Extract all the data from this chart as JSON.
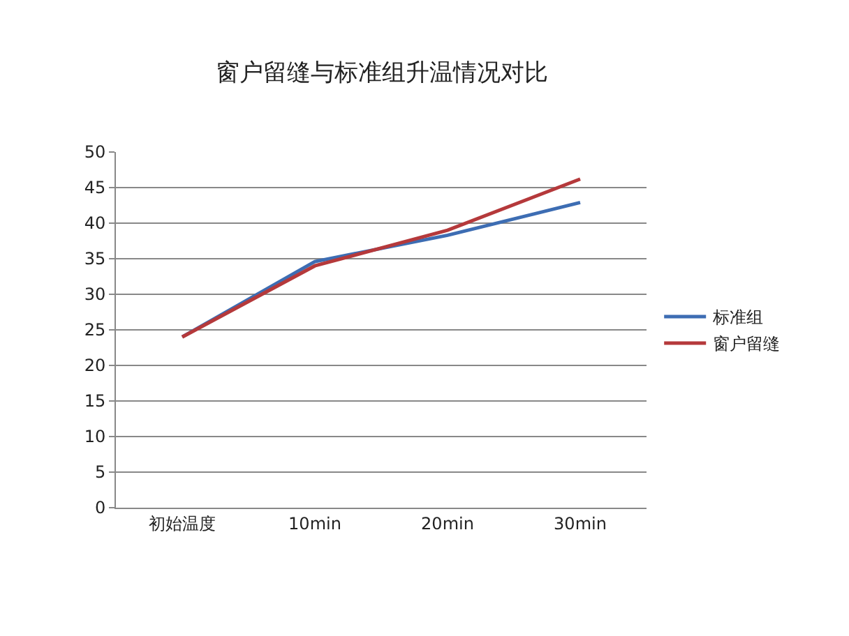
{
  "chart_data": {
    "type": "line",
    "title": "窗户留缝与标准组升温情况对比",
    "categories": [
      "初始温度",
      "10min",
      "20min",
      "30min"
    ],
    "series": [
      {
        "name": "标准组",
        "color": "#3d6db3",
        "values": [
          24,
          34.6,
          38.3,
          42.9
        ]
      },
      {
        "name": "窗户留缝",
        "color": "#b5393b",
        "values": [
          24,
          34,
          39,
          46.2
        ]
      }
    ],
    "ylim": [
      0,
      50
    ],
    "yticks": [
      0,
      5,
      10,
      15,
      20,
      25,
      30,
      35,
      40,
      45,
      50
    ],
    "grid": "y",
    "legend": "right",
    "marker": "none",
    "line_style": "solid"
  }
}
